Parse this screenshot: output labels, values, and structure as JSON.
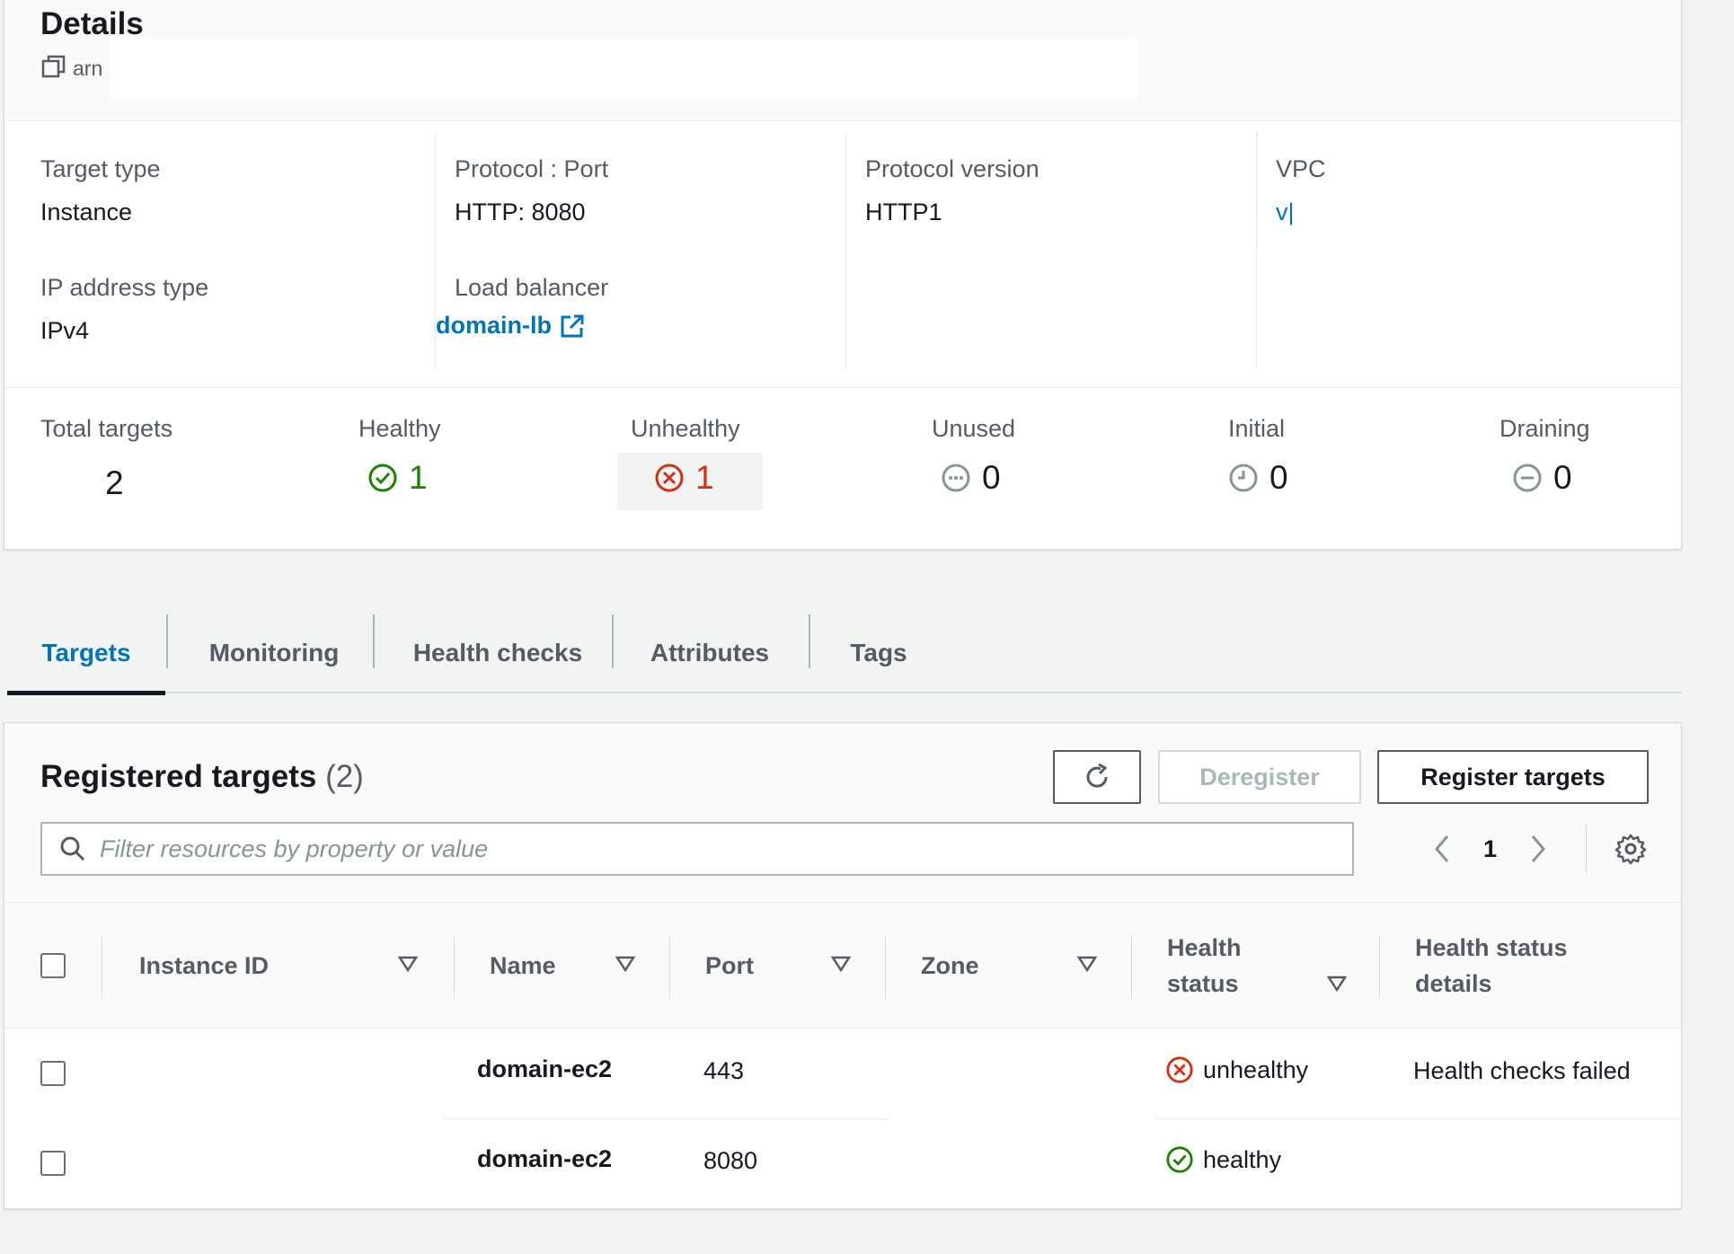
{
  "details": {
    "title": "Details",
    "arn_label": "arn",
    "target_type": {
      "label": "Target type",
      "value": "Instance"
    },
    "ip_address_type": {
      "label": "IP address type",
      "value": "IPv4"
    },
    "protocol_port": {
      "label": "Protocol : Port",
      "value": "HTTP: 8080"
    },
    "load_balancer": {
      "label": "Load balancer",
      "value": "domain-lb"
    },
    "protocol_version": {
      "label": "Protocol version",
      "value": "HTTP1"
    },
    "vpc": {
      "label": "VPC",
      "value": "v|"
    }
  },
  "summary": {
    "total": {
      "label": "Total targets",
      "value": "2"
    },
    "healthy": {
      "label": "Healthy",
      "value": "1"
    },
    "unhealthy": {
      "label": "Unhealthy",
      "value": "1"
    },
    "unused": {
      "label": "Unused",
      "value": "0"
    },
    "initial": {
      "label": "Initial",
      "value": "0"
    },
    "draining": {
      "label": "Draining",
      "value": "0"
    }
  },
  "tabs": [
    {
      "label": "Targets",
      "active": true
    },
    {
      "label": "Monitoring"
    },
    {
      "label": "Health checks"
    },
    {
      "label": "Attributes"
    },
    {
      "label": "Tags"
    }
  ],
  "registered": {
    "title": "Registered targets",
    "count": "(2)",
    "deregister_label": "Deregister",
    "register_label": "Register targets",
    "search_placeholder": "Filter resources by property or value",
    "page": "1",
    "columns": [
      "Instance ID",
      "Name",
      "Port",
      "Zone",
      "Health status",
      "Health status details"
    ],
    "health_status_col": {
      "line1": "Health",
      "line2": "status"
    },
    "health_details_col": {
      "line1": "Health status",
      "line2": "details"
    },
    "rows": [
      {
        "instance_id": "",
        "name": "domain-ec2",
        "port": "443",
        "zone": "",
        "health": "unhealthy",
        "details": "Health checks failed"
      },
      {
        "instance_id": "",
        "name": "domain-ec2",
        "port": "8080",
        "zone": "",
        "health": "healthy",
        "details": ""
      }
    ]
  },
  "colors": {
    "link": "#0073bb",
    "healthy": "#1d8102",
    "unhealthy": "#d13212",
    "muted": "#545b64"
  },
  "icons": [
    "copy-icon",
    "external-link-icon",
    "status-positive-icon",
    "status-negative-icon",
    "status-pending-icon",
    "status-in-progress-icon",
    "status-stopped-icon",
    "refresh-icon",
    "search-icon",
    "angle-left-icon",
    "angle-right-icon",
    "settings-icon",
    "caret-down-icon"
  ]
}
